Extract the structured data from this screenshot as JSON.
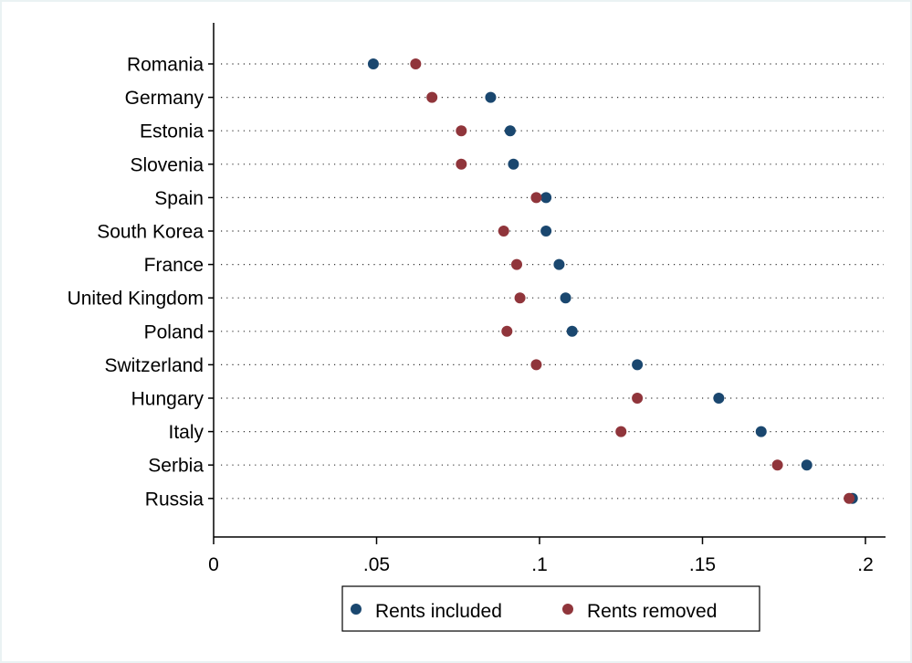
{
  "chart_data": {
    "type": "dot",
    "categories": [
      "Romania",
      "Germany",
      "Estonia",
      "Slovenia",
      "Spain",
      "South Korea",
      "France",
      "United Kingdom",
      "Poland",
      "Switzerland",
      "Hungary",
      "Italy",
      "Serbia",
      "Russia"
    ],
    "series": [
      {
        "name": "Rents included",
        "color": "#1a476f",
        "values": [
          0.049,
          0.085,
          0.091,
          0.092,
          0.102,
          0.102,
          0.106,
          0.108,
          0.11,
          0.13,
          0.155,
          0.168,
          0.182,
          0.196
        ]
      },
      {
        "name": "Rents removed",
        "color": "#90353b",
        "values": [
          0.062,
          0.067,
          0.076,
          0.076,
          0.099,
          0.089,
          0.093,
          0.094,
          0.09,
          0.099,
          0.13,
          0.125,
          0.173,
          0.195
        ]
      }
    ],
    "x_ticks": [
      0,
      0.05,
      0.1,
      0.15,
      0.2
    ],
    "x_tick_labels": [
      "0",
      ".05",
      ".1",
      ".15",
      ".2"
    ],
    "xlim": [
      0,
      0.2
    ],
    "grid": "dotted-horizontal",
    "legend_position": "bottom"
  }
}
